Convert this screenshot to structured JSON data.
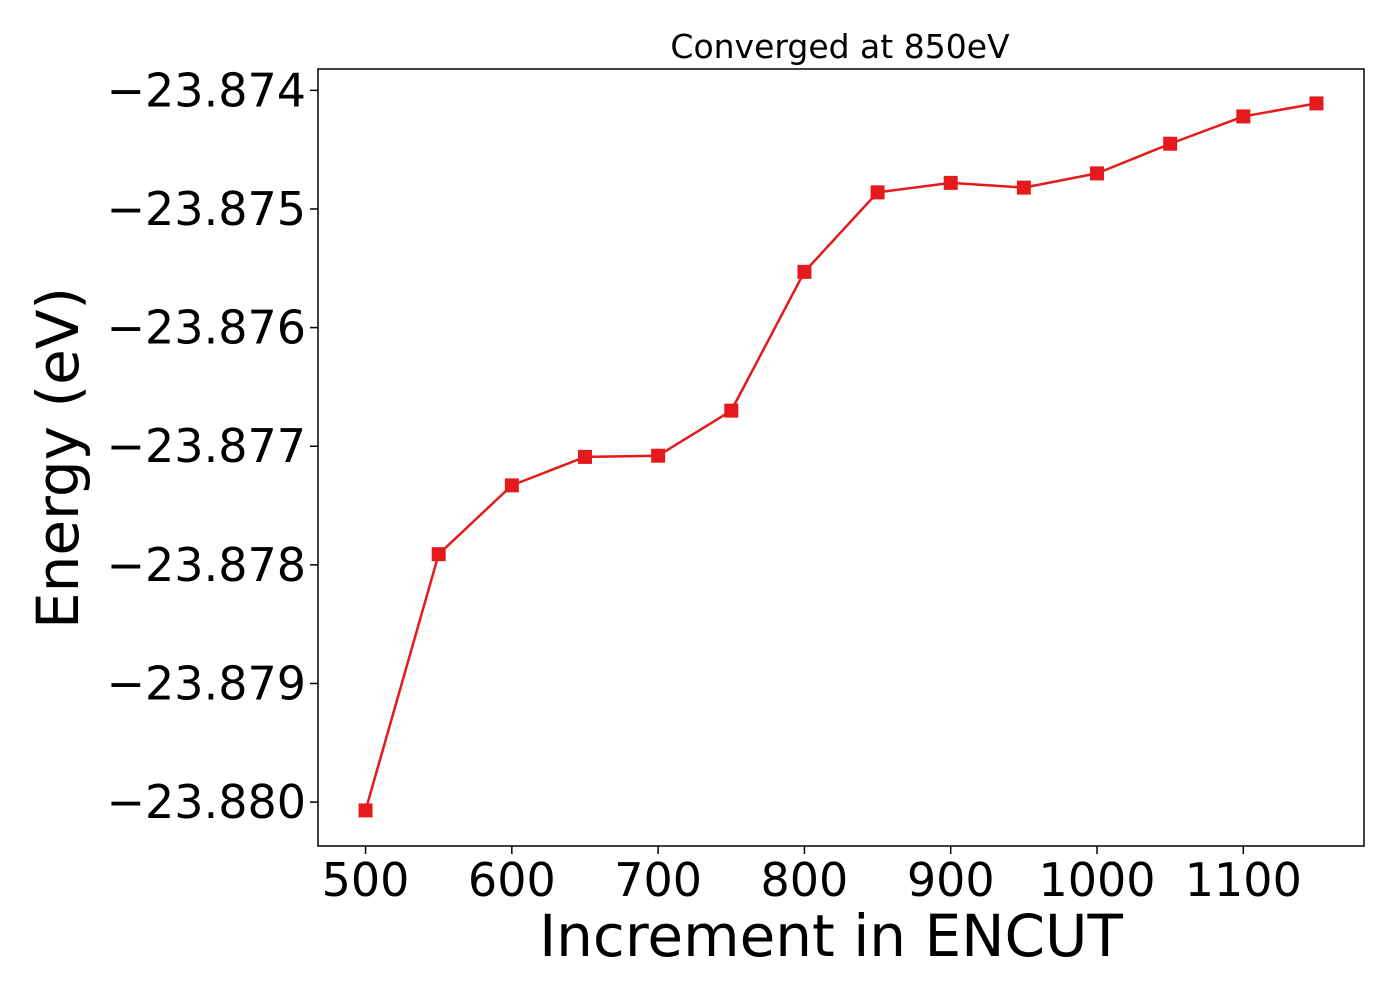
{
  "chart_data": {
    "type": "line",
    "title": "Converged at 850eV",
    "xlabel": "Increment in ENCUT",
    "ylabel": "Energy (eV)",
    "xlim": [
      467.5,
      1182.5
    ],
    "ylim": [
      -23.88037,
      -23.87382
    ],
    "xticks": [
      500,
      600,
      700,
      800,
      900,
      1000,
      1100
    ],
    "yticks": [
      -23.874,
      -23.875,
      -23.876,
      -23.877,
      -23.878,
      -23.879,
      -23.88
    ],
    "ytick_labels": [
      "−23.874",
      "−23.875",
      "−23.876",
      "−23.877",
      "−23.878",
      "−23.879",
      "−23.880"
    ],
    "grid": false,
    "legend": "none",
    "series": [
      {
        "color": "#e41a1c",
        "marker": "square",
        "x": [
          500,
          550,
          600,
          650,
          700,
          750,
          800,
          850,
          900,
          950,
          1000,
          1050,
          1100,
          1150
        ],
        "y": [
          -23.88007,
          -23.87791,
          -23.87733,
          -23.87709,
          -23.87708,
          -23.8767,
          -23.87553,
          -23.87486,
          -23.87478,
          -23.87482,
          -23.8747,
          -23.87445,
          -23.87422,
          -23.87411
        ]
      }
    ]
  }
}
